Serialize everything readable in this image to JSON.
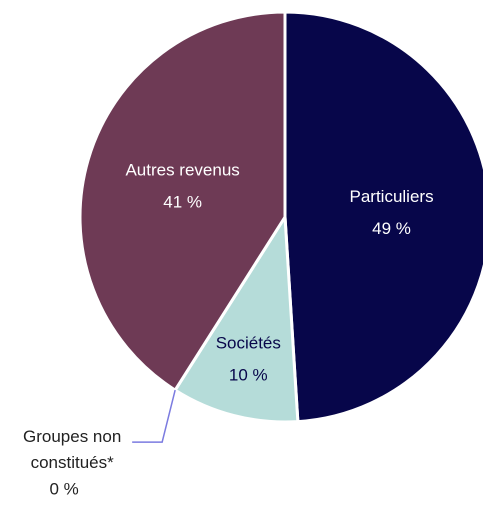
{
  "chart_data": {
    "type": "pie",
    "categories": [
      "Particuliers",
      "Sociétés",
      "Groupes non constitués*",
      "Autres revenus"
    ],
    "values": [
      49,
      10,
      0,
      41
    ],
    "value_labels": [
      "49 %",
      "10 %",
      "0 %",
      "41 %"
    ],
    "colors": [
      "#07064a",
      "#b5dcd9",
      "#7b7be0",
      "#6e3a55"
    ]
  }
}
